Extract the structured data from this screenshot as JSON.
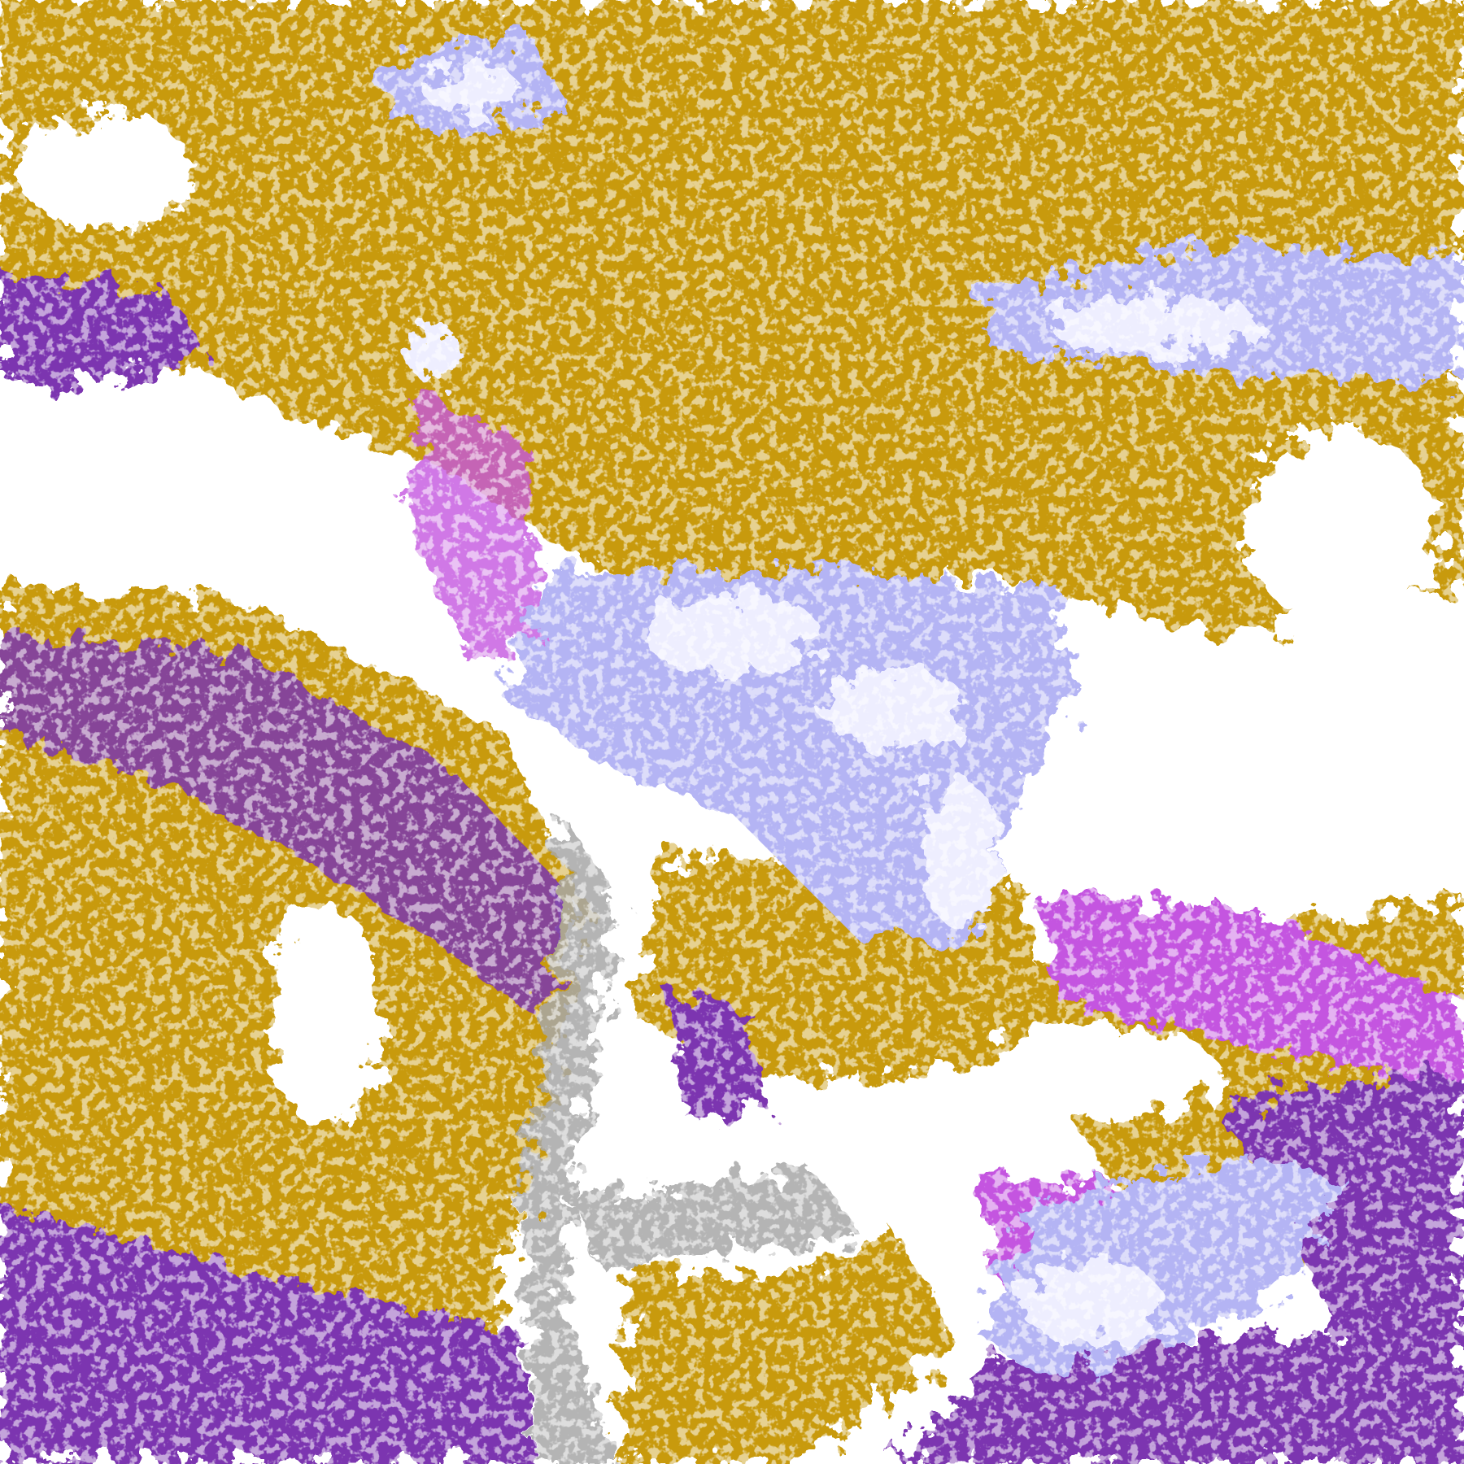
{
  "image": {
    "kind": "false-color satellite cloud classification",
    "palette": {
      "clear": "#ffffff",
      "low_cloud": "#c89a0a",
      "mid_cloud_dark": "#7b35b0",
      "mid_cloud_bright": "#c455e0",
      "high_cloud": "#b4b4f4",
      "very_high_cloud": "#eeeeff",
      "thin_cloud": "#a8a8a8"
    }
  }
}
